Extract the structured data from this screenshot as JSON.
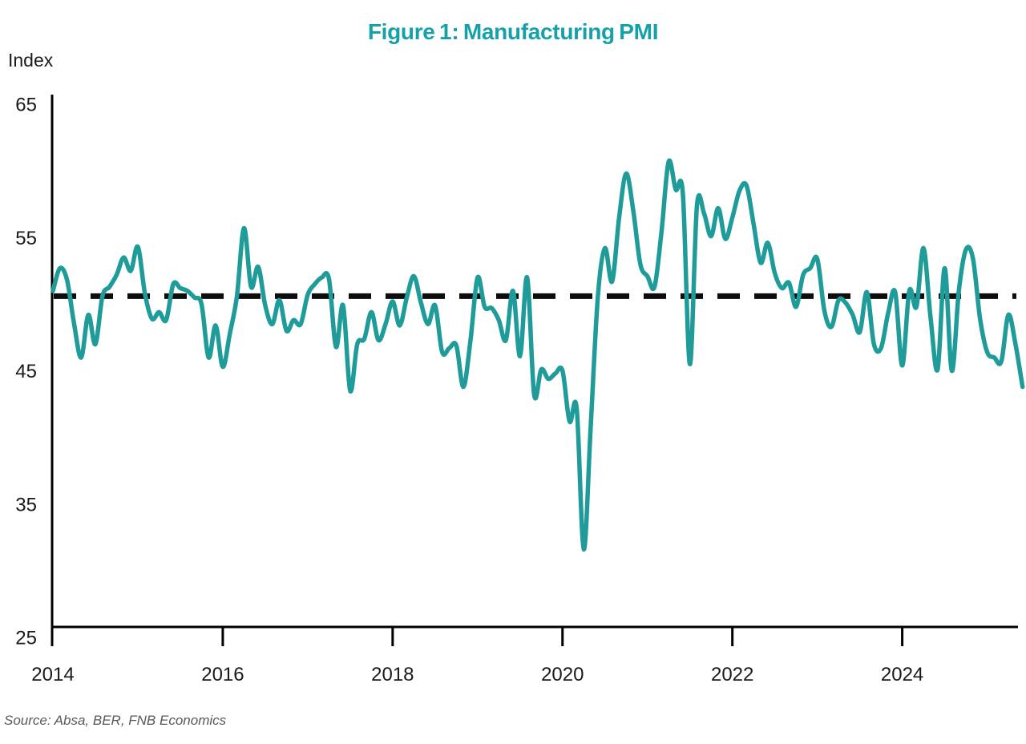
{
  "title": {
    "text": "Figure 1: Manufacturing PMI"
  },
  "source": "Source: Absa, BER, FNB Economics",
  "colors": {
    "title": "#16a0a8",
    "line": "#1f9c99",
    "dashed_line": "#0d0d0d",
    "axis": "#000000",
    "text": "#1a1a1a",
    "source_text": "#595959"
  },
  "chart_data": {
    "type": "line",
    "title": "Figure 1: Manufacturing PMI",
    "ylabel": "Index",
    "xlabel": "",
    "frequency": "monthly",
    "x_start": "2014-01",
    "x_end": "2025-06",
    "ylim": [
      25,
      65
    ],
    "y_ticks": [
      65,
      55,
      45,
      35,
      25
    ],
    "x_tick_labels": [
      "2014",
      "2016",
      "2018",
      "2020",
      "2022",
      "2024"
    ],
    "x_tick_month_index": [
      0,
      24,
      48,
      72,
      96,
      120
    ],
    "grid": false,
    "legend": "none",
    "average_line": {
      "value": 50.6,
      "style": "dashed"
    },
    "series": [
      {
        "name": "Manufacturing PMI",
        "values": [
          51.0,
          52.7,
          51.8,
          48.5,
          46.0,
          49.2,
          47.0,
          50.6,
          51.3,
          52.2,
          53.5,
          52.5,
          54.3,
          50.8,
          48.9,
          49.4,
          48.8,
          51.5,
          51.2,
          51.0,
          50.5,
          50.0,
          46.0,
          48.4,
          45.3,
          47.8,
          50.6,
          55.7,
          51.3,
          52.8,
          49.9,
          48.5,
          50.3,
          48.0,
          48.8,
          48.5,
          50.7,
          51.5,
          52.0,
          51.9,
          46.8,
          49.9,
          43.5,
          47.0,
          47.4,
          49.4,
          47.3,
          48.5,
          50.2,
          48.4,
          50.5,
          52.1,
          50.1,
          48.5,
          49.9,
          46.4,
          46.7,
          46.9,
          43.8,
          47.3,
          52.0,
          49.8,
          49.7,
          48.8,
          47.3,
          51.0,
          46.1,
          52.0,
          43.2,
          45.1,
          44.4,
          44.8,
          45.0,
          41.2,
          42.2,
          31.6,
          41.0,
          50.6,
          54.2,
          51.7,
          56.5,
          59.8,
          57.0,
          53.0,
          52.1,
          51.3,
          55.5,
          60.7,
          58.6,
          58.3,
          45.5,
          57.4,
          56.8,
          55.1,
          57.2,
          54.9,
          56.5,
          58.5,
          58.9,
          56.0,
          53.1,
          54.6,
          52.3,
          51.2,
          51.6,
          49.8,
          52.2,
          52.7,
          53.4,
          49.5,
          48.3,
          50.3,
          50.1,
          49.2,
          47.9,
          50.9,
          47.0,
          46.7,
          49.3,
          50.9,
          45.4,
          51.0,
          49.8,
          54.2,
          49.0,
          45.1,
          52.7,
          45.0,
          51.0,
          54.1,
          53.4,
          48.9,
          46.4,
          46.0,
          45.7,
          49.2,
          47.0,
          43.8
        ]
      }
    ]
  }
}
